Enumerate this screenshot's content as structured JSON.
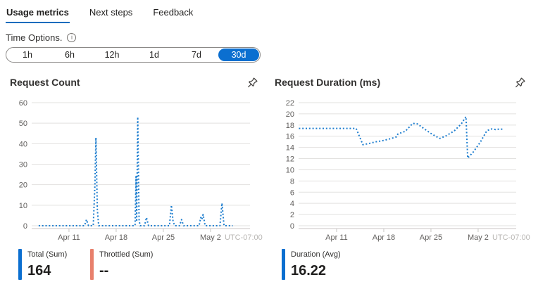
{
  "tabs": [
    {
      "label": "Usage metrics",
      "active": true
    },
    {
      "label": "Next steps",
      "active": false
    },
    {
      "label": "Feedback",
      "active": false
    }
  ],
  "time_options": {
    "label": "Time Options.",
    "info_icon": "info-circle-icon",
    "options": [
      "1h",
      "6h",
      "12h",
      "1d",
      "7d",
      "30d"
    ],
    "selected": "30d"
  },
  "colors": {
    "accent": "#0b6fd0",
    "line": "#1e7ecf",
    "throttled": "#e8806c",
    "grid": "#e2e1df",
    "axis_line": "#c8c6c4",
    "axis_text": "#605e5c",
    "utc_text": "#b9b7b4"
  },
  "chart_data": [
    {
      "type": "line",
      "title": "Request Count",
      "line_style": "dotted",
      "color": "#1e7ecf",
      "xlabel": "",
      "ylabel": "",
      "ylim": [
        0,
        60
      ],
      "ytick_step": 10,
      "x_ticks": [
        {
          "label": "Apr 11",
          "day": 5
        },
        {
          "label": "Apr 18",
          "day": 12
        },
        {
          "label": "Apr 25",
          "day": 19
        },
        {
          "label": "May 2",
          "day": 26
        }
      ],
      "x_suffix": "UTC-07:00",
      "points": [
        [
          0.5,
          0
        ],
        [
          1.3,
          0
        ],
        [
          2.1,
          0
        ],
        [
          2.9,
          0
        ],
        [
          3.7,
          0
        ],
        [
          4.5,
          0
        ],
        [
          5.3,
          0
        ],
        [
          6.1,
          0
        ],
        [
          6.9,
          0
        ],
        [
          7.3,
          0
        ],
        [
          7.6,
          3
        ],
        [
          7.9,
          0
        ],
        [
          8.6,
          0
        ],
        [
          8.85,
          20
        ],
        [
          9.0,
          43
        ],
        [
          9.2,
          8
        ],
        [
          9.4,
          0
        ],
        [
          10.2,
          0
        ],
        [
          11.0,
          0
        ],
        [
          11.8,
          0
        ],
        [
          12.6,
          0
        ],
        [
          13.4,
          0
        ],
        [
          14.2,
          0
        ],
        [
          14.8,
          0
        ],
        [
          14.95,
          24
        ],
        [
          15.05,
          2
        ],
        [
          15.2,
          53
        ],
        [
          15.4,
          3
        ],
        [
          15.55,
          0
        ],
        [
          16.2,
          0
        ],
        [
          16.5,
          4
        ],
        [
          16.8,
          0
        ],
        [
          17.6,
          0
        ],
        [
          18.4,
          0
        ],
        [
          19.2,
          0
        ],
        [
          19.9,
          0
        ],
        [
          20.2,
          10
        ],
        [
          20.45,
          2
        ],
        [
          20.7,
          0
        ],
        [
          21.4,
          0
        ],
        [
          21.7,
          3
        ],
        [
          22.0,
          0
        ],
        [
          22.8,
          0
        ],
        [
          23.6,
          0
        ],
        [
          24.3,
          0
        ],
        [
          24.55,
          4
        ],
        [
          24.7,
          3
        ],
        [
          24.9,
          5.5
        ],
        [
          25.2,
          0
        ],
        [
          26.0,
          0
        ],
        [
          26.8,
          0
        ],
        [
          27.4,
          0
        ],
        [
          27.7,
          11
        ],
        [
          28.0,
          0
        ],
        [
          28.7,
          0
        ],
        [
          29.3,
          0
        ]
      ],
      "legend": [
        {
          "label": "Total (Sum)",
          "value": "164",
          "color": "#0b6fd0"
        },
        {
          "label": "Throttled (Sum)",
          "value": "--",
          "color": "#e8806c"
        }
      ]
    },
    {
      "type": "line",
      "title": "Request Duration (ms)",
      "line_style": "dotted",
      "color": "#1e7ecf",
      "xlabel": "",
      "ylabel": "",
      "ylim": [
        0,
        22
      ],
      "ytick_step": 2,
      "x_ticks": [
        {
          "label": "Apr 11",
          "day": 5
        },
        {
          "label": "Apr 18",
          "day": 12
        },
        {
          "label": "Apr 25",
          "day": 19
        },
        {
          "label": "May 2",
          "day": 26
        }
      ],
      "x_suffix": "UTC-07:00",
      "points": [
        [
          -0.6,
          17.4
        ],
        [
          0.2,
          17.4
        ],
        [
          1.0,
          17.4
        ],
        [
          1.8,
          17.4
        ],
        [
          2.6,
          17.4
        ],
        [
          3.4,
          17.4
        ],
        [
          4.2,
          17.4
        ],
        [
          5.0,
          17.4
        ],
        [
          5.8,
          17.4
        ],
        [
          6.6,
          17.4
        ],
        [
          7.4,
          17.4
        ],
        [
          7.9,
          17.4
        ],
        [
          8.9,
          14.5
        ],
        [
          9.8,
          14.7
        ],
        [
          10.8,
          15.0
        ],
        [
          11.8,
          15.2
        ],
        [
          12.8,
          15.5
        ],
        [
          13.7,
          15.8
        ],
        [
          13.9,
          15.9
        ],
        [
          14.1,
          16.4
        ],
        [
          15.2,
          16.9
        ],
        [
          16.3,
          18.3
        ],
        [
          17.0,
          18.2
        ],
        [
          17.8,
          17.5
        ],
        [
          19.0,
          16.5
        ],
        [
          20.3,
          15.6
        ],
        [
          21.3,
          16.1
        ],
        [
          22.5,
          17.0
        ],
        [
          23.5,
          18.2
        ],
        [
          24.2,
          19.5
        ],
        [
          24.45,
          12.1
        ],
        [
          25.3,
          13.2
        ],
        [
          26.3,
          14.9
        ],
        [
          27.3,
          17.0
        ],
        [
          28.0,
          17.3
        ],
        [
          28.6,
          17.2
        ],
        [
          29.3,
          17.3
        ],
        [
          29.8,
          17.2
        ]
      ],
      "legend": [
        {
          "label": "Duration (Avg)",
          "value": "16.22",
          "color": "#0b6fd0"
        }
      ]
    }
  ]
}
